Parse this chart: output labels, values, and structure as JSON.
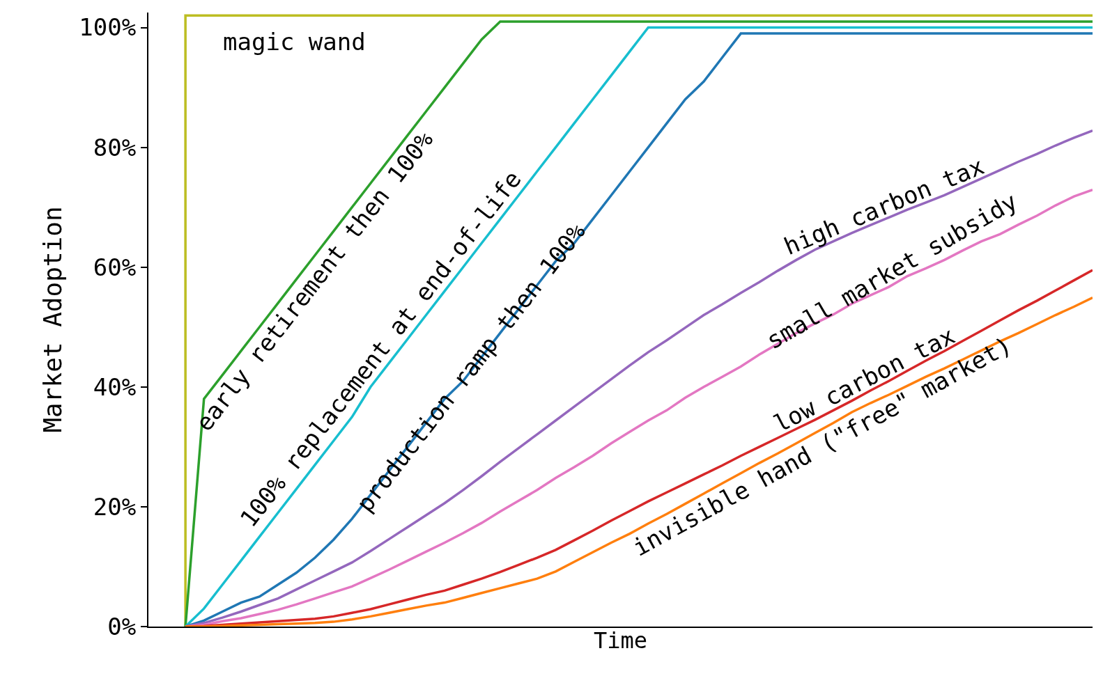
{
  "chart_data": {
    "type": "line",
    "xlabel": "Time",
    "ylabel": "Market Adoption",
    "categories": [
      null,
      null,
      null,
      null,
      null,
      null,
      null,
      null,
      null,
      null,
      null,
      null,
      null,
      null,
      null,
      null,
      null,
      null,
      null,
      null,
      null,
      null,
      null,
      null,
      null,
      null,
      null,
      null,
      null,
      null,
      null,
      null,
      null,
      null,
      null,
      null,
      null,
      null,
      null,
      null,
      null,
      null,
      null,
      null,
      null,
      null,
      null,
      null,
      null,
      null
    ],
    "ylim": [
      0,
      102.5
    ],
    "yticks": [
      {
        "value": 0,
        "label": "0%"
      },
      {
        "value": 20,
        "label": "20%"
      },
      {
        "value": 40,
        "label": "40%"
      },
      {
        "value": 60,
        "label": "60%"
      },
      {
        "value": 80,
        "label": "80%"
      },
      {
        "value": 100,
        "label": "100%"
      }
    ],
    "tick_labels": "y",
    "grid": false,
    "legend": false,
    "marker": "none",
    "line_style": "solid",
    "series": [
      {
        "name": "magic wand",
        "type": "step",
        "color": "#bcbd22",
        "values": [
          0,
          102,
          102,
          102,
          102,
          102,
          102,
          102,
          102,
          102,
          102,
          102,
          102,
          102,
          102,
          102,
          102,
          102,
          102,
          102,
          102,
          102,
          102,
          102,
          102,
          102,
          102,
          102,
          102,
          102,
          102,
          102,
          102,
          102,
          102,
          102,
          102,
          102,
          102,
          102,
          102,
          102,
          102,
          102,
          102,
          102,
          102,
          102,
          102,
          102
        ]
      },
      {
        "name": "early retirement then 100%",
        "color": "#2ca02c",
        "values": [
          0,
          38,
          42,
          46,
          50,
          54,
          58,
          62,
          66,
          70,
          74,
          78,
          82,
          86,
          90,
          94,
          98,
          101,
          101,
          101,
          101,
          101,
          101,
          101,
          101,
          101,
          101,
          101,
          101,
          101,
          101,
          101,
          101,
          101,
          101,
          101,
          101,
          101,
          101,
          101,
          101,
          101,
          101,
          101,
          101,
          101,
          101,
          101,
          101,
          101
        ]
      },
      {
        "name": "100% replacement at end-of-life",
        "color": "#17becf",
        "values": [
          0,
          3,
          7,
          11,
          15,
          19,
          23,
          27,
          31,
          35,
          40,
          44,
          48,
          52,
          56,
          60,
          64,
          68,
          72,
          76,
          80,
          84,
          88,
          92,
          96,
          100,
          100,
          100,
          100,
          100,
          100,
          100,
          100,
          100,
          100,
          100,
          100,
          100,
          100,
          100,
          100,
          100,
          100,
          100,
          100,
          100,
          100,
          100,
          100,
          100
        ]
      },
      {
        "name": "production ramp then 100%",
        "color": "#1f77b4",
        "values": [
          0,
          1,
          2.5,
          4,
          5,
          7,
          9,
          11.5,
          14.5,
          18,
          22,
          26,
          30,
          34,
          38,
          41,
          45,
          49,
          53,
          57,
          61,
          64,
          68,
          72,
          76,
          80,
          84,
          88,
          91,
          95,
          99,
          99,
          99,
          99,
          99,
          99,
          99,
          99,
          99,
          99,
          99,
          99,
          99,
          99,
          99,
          99,
          99,
          99,
          99,
          99
        ]
      },
      {
        "name": "high carbon tax",
        "color": "#9467bd",
        "values": [
          0,
          0.6,
          1.5,
          2.5,
          3.6,
          4.7,
          6.2,
          7.7,
          9.2,
          10.7,
          12.6,
          14.6,
          16.6,
          18.6,
          20.6,
          22.8,
          25.1,
          27.5,
          29.8,
          32.1,
          34.4,
          36.7,
          39,
          41.3,
          43.6,
          45.8,
          47.8,
          49.9,
          52,
          53.8,
          55.7,
          57.5,
          59.4,
          61.2,
          62.9,
          64.3,
          65.7,
          67,
          68.3,
          69.6,
          70.8,
          72,
          73.4,
          74.8,
          76.2,
          77.6,
          78.9,
          80.3,
          81.6,
          82.8
        ]
      },
      {
        "name": "small market subsidy",
        "color": "#e377c2",
        "values": [
          0,
          0.3,
          0.9,
          1.4,
          2.1,
          2.8,
          3.7,
          4.7,
          5.7,
          6.7,
          8.1,
          9.5,
          11,
          12.5,
          14,
          15.6,
          17.3,
          19.2,
          21,
          22.8,
          24.8,
          26.6,
          28.5,
          30.6,
          32.5,
          34.4,
          36.1,
          38.2,
          40,
          41.7,
          43.4,
          45.4,
          47.2,
          49,
          50.6,
          52.1,
          53.9,
          55.3,
          56.7,
          58.5,
          59.8,
          61.2,
          62.8,
          64.3,
          65.5,
          67.1,
          68.6,
          70.3,
          71.8,
          72.9
        ]
      },
      {
        "name": "low carbon tax",
        "color": "#d62728",
        "values": [
          0,
          0.1,
          0.3,
          0.5,
          0.7,
          0.9,
          1.1,
          1.3,
          1.7,
          2.3,
          2.9,
          3.7,
          4.5,
          5.3,
          6,
          7,
          8,
          9.1,
          10.3,
          11.5,
          12.8,
          14.4,
          16,
          17.7,
          19.3,
          20.9,
          22.4,
          23.9,
          25.4,
          26.9,
          28.5,
          30,
          31.5,
          33,
          34.5,
          36.1,
          37.7,
          39.4,
          41,
          42.7,
          44.4,
          46,
          47.7,
          49.4,
          51.1,
          52.8,
          54.4,
          56.1,
          57.8,
          59.5
        ]
      },
      {
        "name": "invisible hand (\"free\" market)",
        "color": "#ff7f0e",
        "values": [
          0,
          0,
          0.1,
          0.2,
          0.3,
          0.4,
          0.5,
          0.6,
          0.8,
          1.2,
          1.7,
          2.3,
          2.9,
          3.5,
          4,
          4.8,
          5.6,
          6.4,
          7.2,
          8,
          9.2,
          10.8,
          12.4,
          14,
          15.5,
          17.2,
          18.8,
          20.5,
          22.2,
          23.9,
          25.6,
          27.3,
          28.9,
          30.6,
          32.3,
          34,
          35.8,
          37.3,
          38.7,
          40.2,
          41.7,
          43.1,
          44.6,
          46.1,
          47.6,
          49,
          50.5,
          52,
          53.4,
          54.9
        ]
      }
    ]
  }
}
